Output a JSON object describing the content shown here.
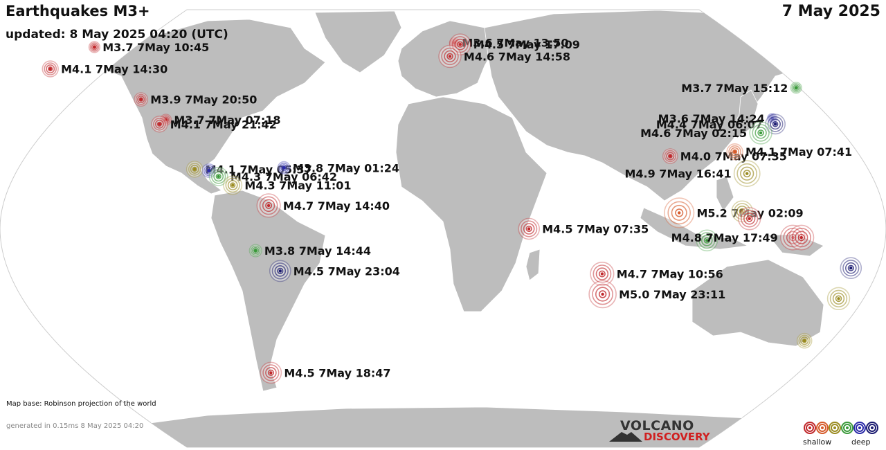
{
  "header": {
    "title": "Earthquakes M3+",
    "updated": "updated:  8 May 2025 04:20 (UTC)",
    "date": "7 May 2025"
  },
  "footer": {
    "map_base": "Map base: Robinson projection of the world",
    "generated": "generated in 0.15ms  8 May 2025 04:20"
  },
  "logo": {
    "line1": "VOLCANO",
    "line2": "DISCOVERY"
  },
  "legend": {
    "shallow": "shallow",
    "deep": "deep",
    "colors": [
      "#c0282b",
      "#d65a2a",
      "#9a8b20",
      "#3a9a3a",
      "#2a2aa8",
      "#1a1a70"
    ]
  },
  "depth_colors": {
    "shallow": "#c0282b",
    "mid_shallow": "#d65a2a",
    "mid": "#9a8b20",
    "mid_deep": "#3a9a3a",
    "deep": "#2a2aa8",
    "very_deep": "#1a1a70"
  },
  "earthquakes": [
    {
      "label": "M3.6  7May 13:50",
      "mag": 3.6,
      "depth": "shallow",
      "lon": 5.0,
      "lat": 61.5
    },
    {
      "label": "M4.5  7May 17:09",
      "mag": 4.5,
      "depth": "shallow",
      "lon": 7.5,
      "lat": 60.9
    },
    {
      "label": "M4.6  7May 14:58",
      "mag": 4.6,
      "depth": "shallow",
      "lon": 3.0,
      "lat": 56.8
    },
    {
      "label": "M3.7  7May 10:45",
      "mag": 3.7,
      "depth": "shallow",
      "lon": -152.0,
      "lat": 60.0
    },
    {
      "label": "M4.1  7May 14:30",
      "mag": 4.1,
      "depth": "shallow",
      "lon": -169.0,
      "lat": 52.5
    },
    {
      "label": "M3.9  7May 20:50",
      "mag": 3.9,
      "depth": "shallow",
      "lon": -128.0,
      "lat": 42.0
    },
    {
      "label": "M3.7  7May 07:18",
      "mag": 3.7,
      "depth": "shallow",
      "lon": -116.5,
      "lat": 35.0
    },
    {
      "label": "M4.1  7May 21:42",
      "mag": 4.1,
      "depth": "shallow",
      "lon": -119.0,
      "lat": 33.5
    },
    {
      "label": "M4.1  7May 05:37",
      "mag": 4.1,
      "depth": "mid",
      "lon": -103.0,
      "lat": 18.0
    },
    {
      "label": "",
      "mag": 3.9,
      "depth": "deep",
      "lon": -97.0,
      "lat": 17.5
    },
    {
      "label": "M4.3  7May 06:42",
      "mag": 4.3,
      "depth": "mid_deep",
      "lon": -93.0,
      "lat": 15.5
    },
    {
      "label": "M4.3  7May 11:01",
      "mag": 4.3,
      "depth": "mid",
      "lon": -87.0,
      "lat": 12.5
    },
    {
      "label": "M3.8  7May 01:24",
      "mag": 3.8,
      "depth": "deep",
      "lon": -66.0,
      "lat": 18.5
    },
    {
      "label": "M4.7  7May 14:40",
      "mag": 4.7,
      "depth": "shallow",
      "lon": -72.0,
      "lat": 5.5
    },
    {
      "label": "M3.8  7May 14:44",
      "mag": 3.8,
      "depth": "mid_deep",
      "lon": -77.5,
      "lat": -10.0
    },
    {
      "label": "M4.5  7May 23:04",
      "mag": 4.5,
      "depth": "very_deep",
      "lon": -67.5,
      "lat": -17.0
    },
    {
      "label": "M4.5  7May 18:47",
      "mag": 4.5,
      "depth": "shallow",
      "lon": -74.0,
      "lat": -52.0
    },
    {
      "label": "M4.5  7May 07:35",
      "mag": 4.5,
      "depth": "shallow",
      "lon": 35.5,
      "lat": -2.5
    },
    {
      "label": "M4.7  7May 10:56",
      "mag": 4.7,
      "depth": "shallow",
      "lon": 66.0,
      "lat": -18.0
    },
    {
      "label": "M5.0  7May 23:11",
      "mag": 5.0,
      "depth": "shallow",
      "lon": 66.5,
      "lat": -25.0
    },
    {
      "label": "M4.0  7May 07:35",
      "mag": 4.0,
      "depth": "shallow",
      "lon": 94.5,
      "lat": 22.5
    },
    {
      "label": "M3.7  7May 15:12",
      "mag": 3.7,
      "depth": "mid_deep",
      "lon": 150.5,
      "lat": 46.0
    },
    {
      "label": "M3.6  7May 14:24",
      "mag": 3.6,
      "depth": "deep",
      "lon": 138.5,
      "lat": 35.5
    },
    {
      "label": "M4.4  7May 06:07",
      "mag": 4.4,
      "depth": "very_deep",
      "lon": 139.5,
      "lat": 33.5
    },
    {
      "label": "M4.6  7May 02:15",
      "mag": 4.6,
      "depth": "mid_deep",
      "lon": 133.0,
      "lat": 30.5
    },
    {
      "label": "M4.1  7May 07:41",
      "mag": 4.1,
      "depth": "mid_shallow",
      "lon": 121.5,
      "lat": 24.0
    },
    {
      "label": "M4.9  7May 16:41",
      "mag": 4.9,
      "depth": "mid",
      "lon": 126.0,
      "lat": 16.5
    },
    {
      "label": "M5.2  7May 02:09",
      "mag": 5.2,
      "depth": "mid_shallow",
      "lon": 97.5,
      "lat": 3.0
    },
    {
      "label": "",
      "mag": 4.5,
      "depth": "mid",
      "lon": 123.5,
      "lat": 3.5
    },
    {
      "label": "",
      "mag": 4.6,
      "depth": "shallow",
      "lon": 126.5,
      "lat": 1.0
    },
    {
      "label": "",
      "mag": 4.5,
      "depth": "mid_deep",
      "lon": 109.0,
      "lat": -6.5
    },
    {
      "label": "M4.8  7May 17:49",
      "mag": 4.8,
      "depth": "shallow",
      "lon": 144.5,
      "lat": -5.5
    },
    {
      "label": "",
      "mag": 4.8,
      "depth": "shallow",
      "lon": 148.0,
      "lat": -5.5
    },
    {
      "label": "",
      "mag": 4.5,
      "depth": "very_deep",
      "lon": 169.0,
      "lat": -16.0
    },
    {
      "label": "",
      "mag": 4.6,
      "depth": "mid",
      "lon": 165.0,
      "lat": -26.5
    },
    {
      "label": "",
      "mag": 4.0,
      "depth": "mid",
      "lon": 153.0,
      "lat": -41.0
    }
  ]
}
